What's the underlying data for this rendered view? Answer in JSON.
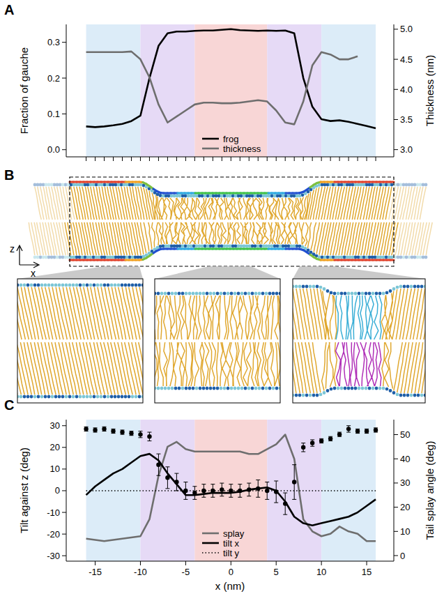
{
  "chart_data": [
    {
      "panel": "A",
      "type": "line",
      "x": [
        -16,
        -15,
        -14,
        -13,
        -12,
        -11,
        -10,
        -9,
        -8,
        -7,
        -6,
        -5,
        -4,
        -3,
        -2,
        -1,
        0,
        1,
        2,
        3,
        4,
        5,
        6,
        7,
        8,
        9,
        10,
        11,
        12,
        13,
        14,
        15,
        16
      ],
      "xlim": [
        -18.2,
        18
      ],
      "xticks": [
        -16,
        -15,
        -14,
        -13,
        -12,
        -11,
        -10,
        -9,
        -8,
        -7,
        -6,
        -5,
        -4,
        -3,
        -2,
        -1,
        0,
        1,
        2,
        3,
        4,
        5,
        6,
        7,
        8,
        9,
        10,
        11,
        12,
        13,
        14,
        15,
        16
      ],
      "tick_labels": "y",
      "ylabel": "Fraction of gauche",
      "y2label": "Thickness (nm)",
      "ylim": [
        -0.02,
        0.35
      ],
      "yticks": [
        {
          "value": 0,
          "label": "0.0"
        },
        0.1,
        0.2,
        0.3
      ],
      "y2lim": [
        2.88,
        5.08
      ],
      "y2ticks": [
        {
          "value": 3,
          "label": "3.0"
        },
        3.5,
        {
          "value": 4,
          "label": "4.0"
        },
        4.5,
        {
          "value": 5,
          "label": "5.0"
        }
      ],
      "regions": [
        {
          "from": -16,
          "to": -10,
          "color": "#dcecf8"
        },
        {
          "from": -10,
          "to": -4,
          "color": "#e6daf6"
        },
        {
          "from": -4,
          "to": 4,
          "color": "#f8d6d6"
        },
        {
          "from": 4,
          "to": 10,
          "color": "#e6daf6"
        },
        {
          "from": 10,
          "to": 16,
          "color": "#dcecf8"
        }
      ],
      "legend": "bottom",
      "series": [
        {
          "name": "frog",
          "color": "#000000",
          "line_style": "solid",
          "values": [
            0.065,
            0.063,
            0.065,
            0.068,
            0.072,
            0.08,
            0.095,
            0.2,
            0.29,
            0.325,
            0.33,
            0.33,
            0.332,
            0.333,
            0.333,
            0.335,
            0.337,
            0.334,
            0.333,
            0.332,
            0.333,
            0.332,
            0.333,
            0.325,
            0.2,
            0.12,
            0.085,
            0.08,
            0.082,
            0.078,
            0.072,
            0.066,
            0.06
          ]
        },
        {
          "name": "thickness",
          "color": "#6e6e6e",
          "line_style": "solid",
          "axis": "y2",
          "values": [
            4.62,
            4.62,
            4.62,
            4.62,
            4.62,
            4.63,
            4.5,
            4.2,
            3.75,
            3.45,
            3.55,
            3.65,
            3.75,
            3.78,
            3.78,
            3.77,
            3.77,
            3.78,
            3.8,
            3.82,
            3.8,
            3.65,
            3.45,
            3.42,
            3.8,
            4.4,
            4.62,
            4.58,
            4.5,
            4.5,
            4.55,
            null,
            null
          ]
        }
      ]
    },
    {
      "panel": "C",
      "type": "line",
      "x": [
        -16,
        -15,
        -14,
        -13,
        -12,
        -11,
        -10,
        -9,
        -8,
        -7,
        -6,
        -5,
        -4,
        -3,
        -2,
        -1,
        0,
        1,
        2,
        3,
        4,
        5,
        6,
        7,
        8,
        9,
        10,
        11,
        12,
        13,
        14,
        15,
        16
      ],
      "xlim": [
        -18.2,
        18
      ],
      "xticks": [
        -15,
        -10,
        -5,
        0,
        5,
        10,
        15
      ],
      "xlabel": "x (nm)",
      "ylabel": "Tilt against z (deg)",
      "y2label": "Tail splay angle (deg)",
      "ylim": [
        -32.5,
        32.8
      ],
      "yticks": [
        -30,
        -20,
        -10,
        0,
        10,
        20,
        30
      ],
      "y2lim": [
        -2.3,
        56.2
      ],
      "y2ticks": [
        0,
        10,
        20,
        30,
        40,
        50
      ],
      "regions": [
        {
          "from": -16,
          "to": -10,
          "color": "#dcecf8"
        },
        {
          "from": -10,
          "to": -4,
          "color": "#e6daf6"
        },
        {
          "from": -4,
          "to": 4,
          "color": "#f8d6d6"
        },
        {
          "from": 4,
          "to": 10,
          "color": "#e6daf6"
        },
        {
          "from": 10,
          "to": 16,
          "color": "#dcecf8"
        }
      ],
      "legend": "bottom",
      "series": [
        {
          "name": "splay",
          "color": "#6e6e6e",
          "line_style": "solid",
          "axis": "y2",
          "values": [
            7,
            6.5,
            6,
            6.5,
            7,
            7.5,
            8,
            15,
            33,
            45,
            47,
            44,
            43,
            43,
            43,
            43,
            43,
            43,
            42,
            42,
            44,
            46,
            50,
            40,
            15,
            10,
            8,
            9,
            12,
            10,
            9,
            6,
            6
          ]
        },
        {
          "name": "tilt x",
          "color": "#000000",
          "line_style": "solid",
          "values": [
            -2,
            2,
            5,
            8,
            10,
            13,
            16,
            17,
            14,
            8,
            3,
            -2,
            -2,
            -1.5,
            -1,
            -1,
            -1,
            -0.5,
            0.5,
            1,
            1.5,
            0,
            -5,
            -12,
            -15,
            -16,
            -15,
            -14,
            -13,
            -12,
            -10,
            -7,
            -4
          ]
        },
        {
          "name": "tilt y",
          "color": "#000000",
          "line_style": "dotted",
          "values": [
            0,
            0,
            0,
            0,
            0,
            0,
            0,
            0,
            0,
            0,
            0,
            0,
            0,
            0,
            0,
            0,
            0,
            0,
            0,
            0,
            0,
            0,
            0,
            0,
            0,
            0,
            0,
            0,
            0,
            0,
            0,
            0,
            0
          ]
        },
        {
          "type": "scatter",
          "marker": "circle",
          "color": "#000000",
          "values": [
            28.5,
            28,
            28.5,
            27.5,
            27,
            26.5,
            26,
            25,
            12,
            6,
            4,
            0,
            -1,
            0,
            0,
            0.5,
            0,
            0,
            0.5,
            1,
            0,
            -0.5,
            -6,
            4,
            20,
            22,
            23,
            24,
            26,
            28.5,
            27.5,
            27.5,
            28
          ],
          "errors": [
            1,
            1,
            1,
            1,
            1,
            1,
            1.5,
            2,
            5,
            5,
            4,
            4,
            3,
            3,
            3,
            3,
            3,
            3,
            3,
            4,
            4,
            5,
            5,
            8,
            2,
            1.5,
            1,
            1,
            1,
            1.5,
            1,
            1,
            1
          ]
        }
      ]
    }
  ],
  "diagram": {
    "panel": "B",
    "vertical_axis": "z",
    "horizontal_axis": "x"
  }
}
